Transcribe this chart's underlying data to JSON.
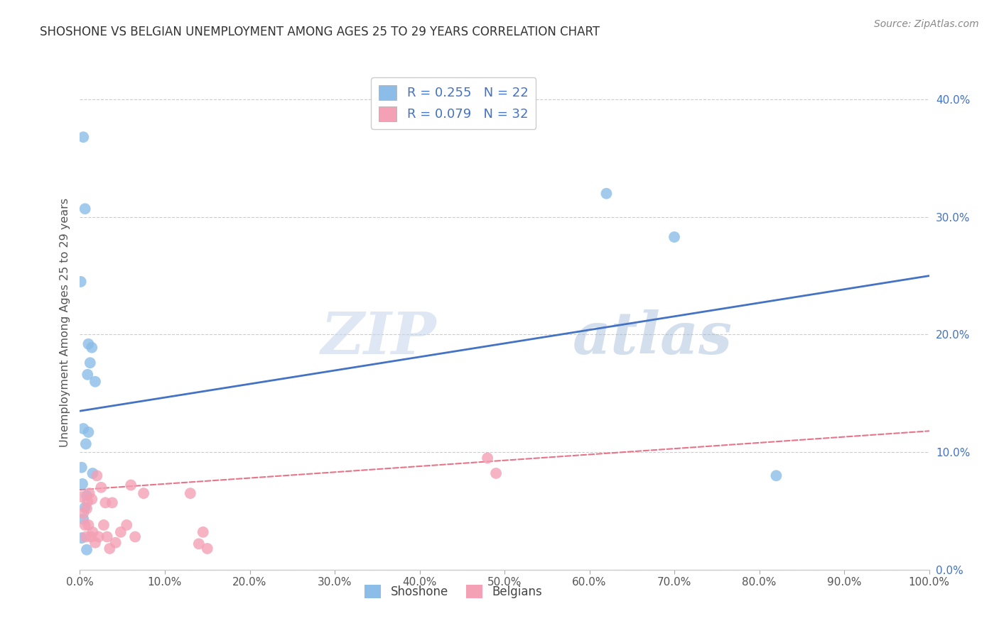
{
  "title": "SHOSHONE VS BELGIAN UNEMPLOYMENT AMONG AGES 25 TO 29 YEARS CORRELATION CHART",
  "source": "Source: ZipAtlas.com",
  "ylabel": "Unemployment Among Ages 25 to 29 years",
  "xlim": [
    0,
    1.0
  ],
  "ylim": [
    0,
    0.42
  ],
  "xticks": [
    0.0,
    0.1,
    0.2,
    0.3,
    0.4,
    0.5,
    0.6,
    0.7,
    0.8,
    0.9,
    1.0
  ],
  "yticks": [
    0.0,
    0.1,
    0.2,
    0.3,
    0.4
  ],
  "shoshone_color": "#8BBDE8",
  "belgian_color": "#F4A0B5",
  "shoshone_line_color": "#4472C4",
  "belgian_line_color": "#E8748A",
  "shoshone_R": 0.255,
  "shoshone_N": 22,
  "belgian_R": 0.079,
  "belgian_N": 32,
  "legend_text_color": "#4472C4",
  "watermark_zip": "ZIP",
  "watermark_atlas": "atlas",
  "shoshone_x": [
    0.004,
    0.006,
    0.001,
    0.01,
    0.014,
    0.012,
    0.009,
    0.018,
    0.004,
    0.01,
    0.007,
    0.002,
    0.015,
    0.003,
    0.008,
    0.006,
    0.004,
    0.002,
    0.008,
    0.62,
    0.7,
    0.82
  ],
  "shoshone_y": [
    0.368,
    0.307,
    0.245,
    0.192,
    0.189,
    0.176,
    0.166,
    0.16,
    0.12,
    0.117,
    0.107,
    0.087,
    0.082,
    0.073,
    0.063,
    0.053,
    0.043,
    0.027,
    0.017,
    0.32,
    0.283,
    0.08
  ],
  "belgian_x": [
    0.002,
    0.004,
    0.006,
    0.007,
    0.008,
    0.009,
    0.01,
    0.011,
    0.013,
    0.014,
    0.015,
    0.018,
    0.02,
    0.022,
    0.025,
    0.028,
    0.03,
    0.032,
    0.035,
    0.038,
    0.042,
    0.048,
    0.055,
    0.06,
    0.065,
    0.075,
    0.13,
    0.14,
    0.145,
    0.15,
    0.48,
    0.49
  ],
  "belgian_y": [
    0.062,
    0.048,
    0.038,
    0.028,
    0.052,
    0.058,
    0.038,
    0.065,
    0.028,
    0.06,
    0.032,
    0.023,
    0.08,
    0.028,
    0.07,
    0.038,
    0.057,
    0.028,
    0.018,
    0.057,
    0.023,
    0.032,
    0.038,
    0.072,
    0.028,
    0.065,
    0.065,
    0.022,
    0.032,
    0.018,
    0.095,
    0.082
  ],
  "blue_line_x0": 0.0,
  "blue_line_y0": 0.135,
  "blue_line_x1": 1.0,
  "blue_line_y1": 0.25,
  "pink_line_x0": 0.0,
  "pink_line_y0": 0.068,
  "pink_line_x1": 1.0,
  "pink_line_y1": 0.118
}
